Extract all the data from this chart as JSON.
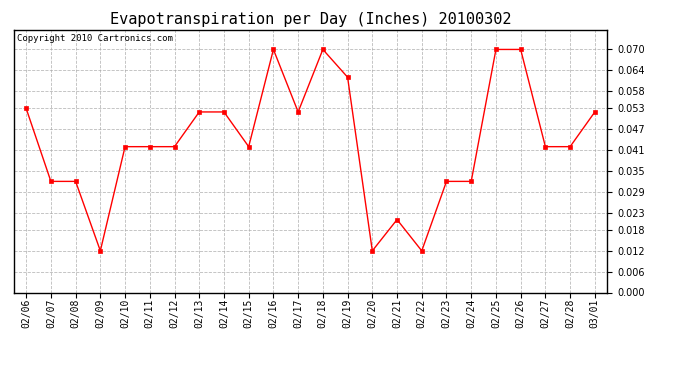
{
  "title": "Evapotranspiration per Day (Inches) 20100302",
  "copyright_text": "Copyright 2010 Cartronics.com",
  "dates": [
    "02/06",
    "02/07",
    "02/08",
    "02/09",
    "02/10",
    "02/11",
    "02/12",
    "02/13",
    "02/14",
    "02/15",
    "02/16",
    "02/17",
    "02/18",
    "02/19",
    "02/20",
    "02/21",
    "02/22",
    "02/23",
    "02/24",
    "02/25",
    "02/26",
    "02/27",
    "02/28",
    "03/01"
  ],
  "values": [
    0.053,
    0.032,
    0.032,
    0.012,
    0.042,
    0.042,
    0.042,
    0.052,
    0.052,
    0.042,
    0.07,
    0.052,
    0.07,
    0.062,
    0.012,
    0.021,
    0.012,
    0.032,
    0.032,
    0.07,
    0.07,
    0.042,
    0.042,
    0.052
  ],
  "ylim": [
    0.0,
    0.0756
  ],
  "yticks": [
    0.0,
    0.006,
    0.012,
    0.018,
    0.023,
    0.029,
    0.035,
    0.041,
    0.047,
    0.053,
    0.058,
    0.064,
    0.07
  ],
  "line_color": "red",
  "marker": "s",
  "marker_size": 2.5,
  "bg_color": "white",
  "grid_color": "#aaaaaa",
  "title_fontsize": 11,
  "tick_fontsize": 7,
  "copyright_fontsize": 6.5
}
